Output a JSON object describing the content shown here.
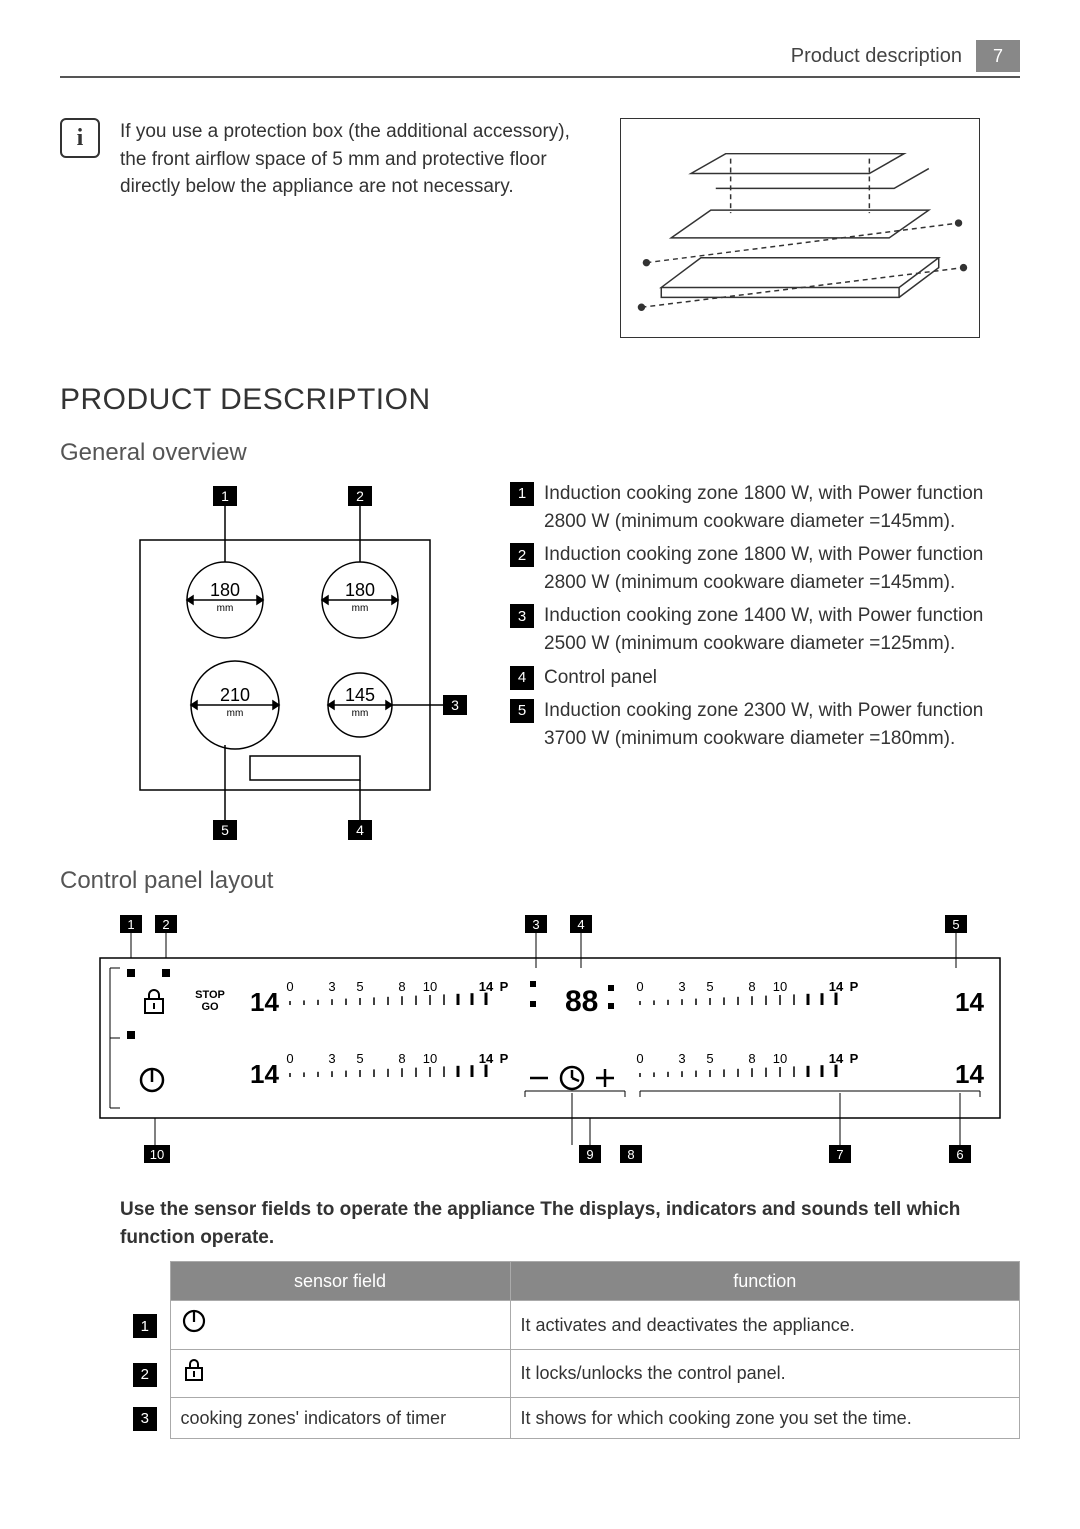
{
  "header": {
    "title": "Product description",
    "page_number": "7"
  },
  "info_note": "If you use a protection box (the additional accessory), the front airflow space of 5 mm and protective floor directly below the appliance are not necessary.",
  "section_title": "PRODUCT DESCRIPTION",
  "general_overview": {
    "heading": "General overview",
    "zones": [
      {
        "n": "1",
        "diameter": "180",
        "unit": "mm"
      },
      {
        "n": "2",
        "diameter": "180",
        "unit": "mm"
      },
      {
        "n": "3",
        "diameter": "145",
        "unit": "mm"
      },
      {
        "n": "5",
        "diameter": "210",
        "unit": "mm"
      }
    ],
    "callouts": {
      "top_left": "1",
      "top_right": "2",
      "mid_right": "3",
      "bot_right": "4",
      "bot_left": "5"
    },
    "legend": [
      {
        "n": "1",
        "text": "Induction cooking zone 1800 W, with Power function 2800 W (minimum cookware diameter =145mm)."
      },
      {
        "n": "2",
        "text": "Induction cooking zone 1800 W, with Power function 2800 W (minimum cookware diameter =145mm)."
      },
      {
        "n": "3",
        "text": "Induction cooking zone 1400 W, with Power function 2500 W (minimum cookware diameter =125mm)."
      },
      {
        "n": "4",
        "text": "Control panel"
      },
      {
        "n": "5",
        "text": "Induction cooking zone 2300 W, with Power function 3700 W (minimum cookware diameter =180mm)."
      }
    ]
  },
  "control_panel": {
    "heading": "Control panel layout",
    "callouts_top": [
      "1",
      "2",
      "3",
      "4",
      "5"
    ],
    "callouts_bot": [
      "10",
      "9",
      "8",
      "7",
      "6"
    ],
    "slider": {
      "marks": [
        "0",
        "3",
        "5",
        "8",
        "10",
        "14",
        "P"
      ]
    },
    "stop_go": "STOP\nGO",
    "digit_glyph": "14",
    "timer_glyph": "88"
  },
  "instruction": "Use the sensor fields to operate the appliance The displays, indicators and sounds tell which function operate.",
  "table": {
    "headers": {
      "col1": "sensor field",
      "col2": "function"
    },
    "rows": [
      {
        "n": "1",
        "sensor": "power-icon",
        "func": "It activates and deactivates the appliance."
      },
      {
        "n": "2",
        "sensor": "lock-icon",
        "func": "It locks/unlocks the control panel."
      },
      {
        "n": "3",
        "sensor_text": "cooking zones' indicators of timer",
        "func": "It shows for which cooking zone you set the time."
      }
    ]
  },
  "colors": {
    "badge_bg": "#000000",
    "header_bg": "#888888",
    "line": "#333333"
  }
}
